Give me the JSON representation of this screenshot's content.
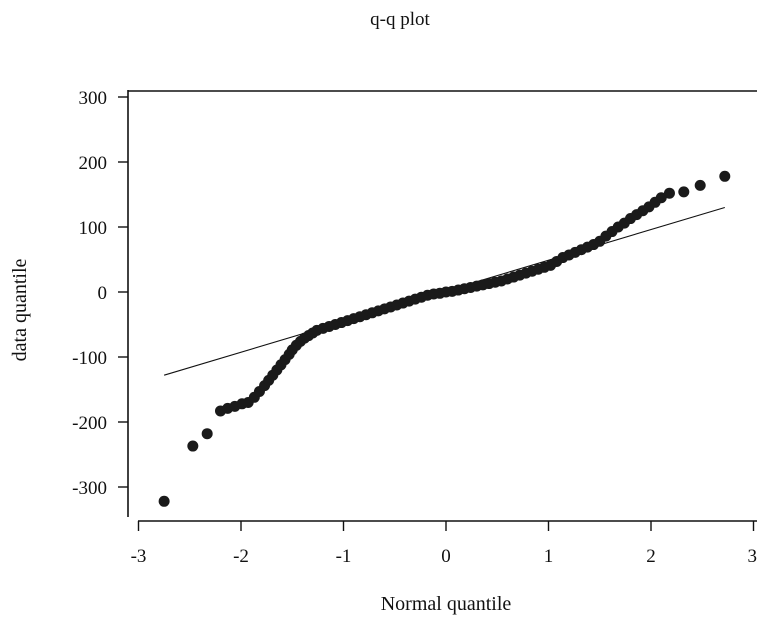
{
  "chart_data": {
    "type": "scatter",
    "title": "q-q plot",
    "xlabel": "Normal quantile",
    "ylabel": "data quantile",
    "xlim": [
      -3,
      3
    ],
    "ylim": [
      -325,
      310
    ],
    "xticks": [
      -3,
      -2,
      -1,
      0,
      1,
      2,
      3
    ],
    "yticks": [
      -300,
      -200,
      -100,
      0,
      100,
      200,
      300
    ],
    "grid": false,
    "reference_line": {
      "x": [
        -2.75,
        2.72
      ],
      "y": [
        -128,
        130
      ]
    },
    "series": [
      {
        "points": [
          [
            -2.75,
            -322
          ],
          [
            -2.47,
            -237
          ],
          [
            -2.33,
            -218
          ],
          [
            -2.2,
            -183
          ],
          [
            -2.13,
            -179
          ],
          [
            -2.06,
            -176
          ],
          [
            -1.99,
            -172
          ],
          [
            -1.93,
            -170
          ],
          [
            -1.87,
            -162
          ],
          [
            -1.82,
            -153
          ],
          [
            -1.77,
            -144
          ],
          [
            -1.73,
            -136
          ],
          [
            -1.69,
            -128
          ],
          [
            -1.65,
            -120
          ],
          [
            -1.61,
            -112
          ],
          [
            -1.57,
            -104
          ],
          [
            -1.53,
            -96
          ],
          [
            -1.5,
            -89
          ],
          [
            -1.46,
            -82
          ],
          [
            -1.42,
            -76
          ],
          [
            -1.38,
            -71
          ],
          [
            -1.34,
            -67
          ],
          [
            -1.3,
            -63
          ],
          [
            -1.26,
            -59
          ],
          [
            -1.2,
            -56
          ],
          [
            -1.14,
            -53
          ],
          [
            -1.08,
            -50
          ],
          [
            -1.02,
            -47
          ],
          [
            -0.96,
            -44
          ],
          [
            -0.9,
            -41
          ],
          [
            -0.84,
            -38
          ],
          [
            -0.78,
            -35
          ],
          [
            -0.72,
            -32
          ],
          [
            -0.66,
            -29
          ],
          [
            -0.6,
            -26
          ],
          [
            -0.54,
            -23
          ],
          [
            -0.48,
            -20
          ],
          [
            -0.42,
            -17
          ],
          [
            -0.36,
            -14
          ],
          [
            -0.3,
            -11
          ],
          [
            -0.24,
            -8
          ],
          [
            -0.18,
            -5
          ],
          [
            -0.12,
            -3
          ],
          [
            -0.06,
            -2
          ],
          [
            0.0,
            0
          ],
          [
            0.06,
            1
          ],
          [
            0.12,
            3
          ],
          [
            0.18,
            5
          ],
          [
            0.24,
            7
          ],
          [
            0.3,
            9
          ],
          [
            0.36,
            11
          ],
          [
            0.42,
            13
          ],
          [
            0.48,
            15
          ],
          [
            0.54,
            17
          ],
          [
            0.6,
            20
          ],
          [
            0.66,
            23
          ],
          [
            0.72,
            26
          ],
          [
            0.78,
            29
          ],
          [
            0.84,
            32
          ],
          [
            0.9,
            35
          ],
          [
            0.96,
            38
          ],
          [
            1.02,
            41
          ],
          [
            1.08,
            47
          ],
          [
            1.14,
            53
          ],
          [
            1.2,
            57
          ],
          [
            1.26,
            61
          ],
          [
            1.32,
            65
          ],
          [
            1.38,
            69
          ],
          [
            1.44,
            73
          ],
          [
            1.5,
            78
          ],
          [
            1.56,
            86
          ],
          [
            1.62,
            93
          ],
          [
            1.68,
            100
          ],
          [
            1.74,
            106
          ],
          [
            1.8,
            113
          ],
          [
            1.86,
            119
          ],
          [
            1.92,
            125
          ],
          [
            1.98,
            131
          ],
          [
            2.04,
            138
          ],
          [
            2.1,
            145
          ],
          [
            2.18,
            152
          ],
          [
            2.32,
            154
          ],
          [
            2.48,
            164
          ],
          [
            2.72,
            178
          ]
        ]
      }
    ]
  }
}
